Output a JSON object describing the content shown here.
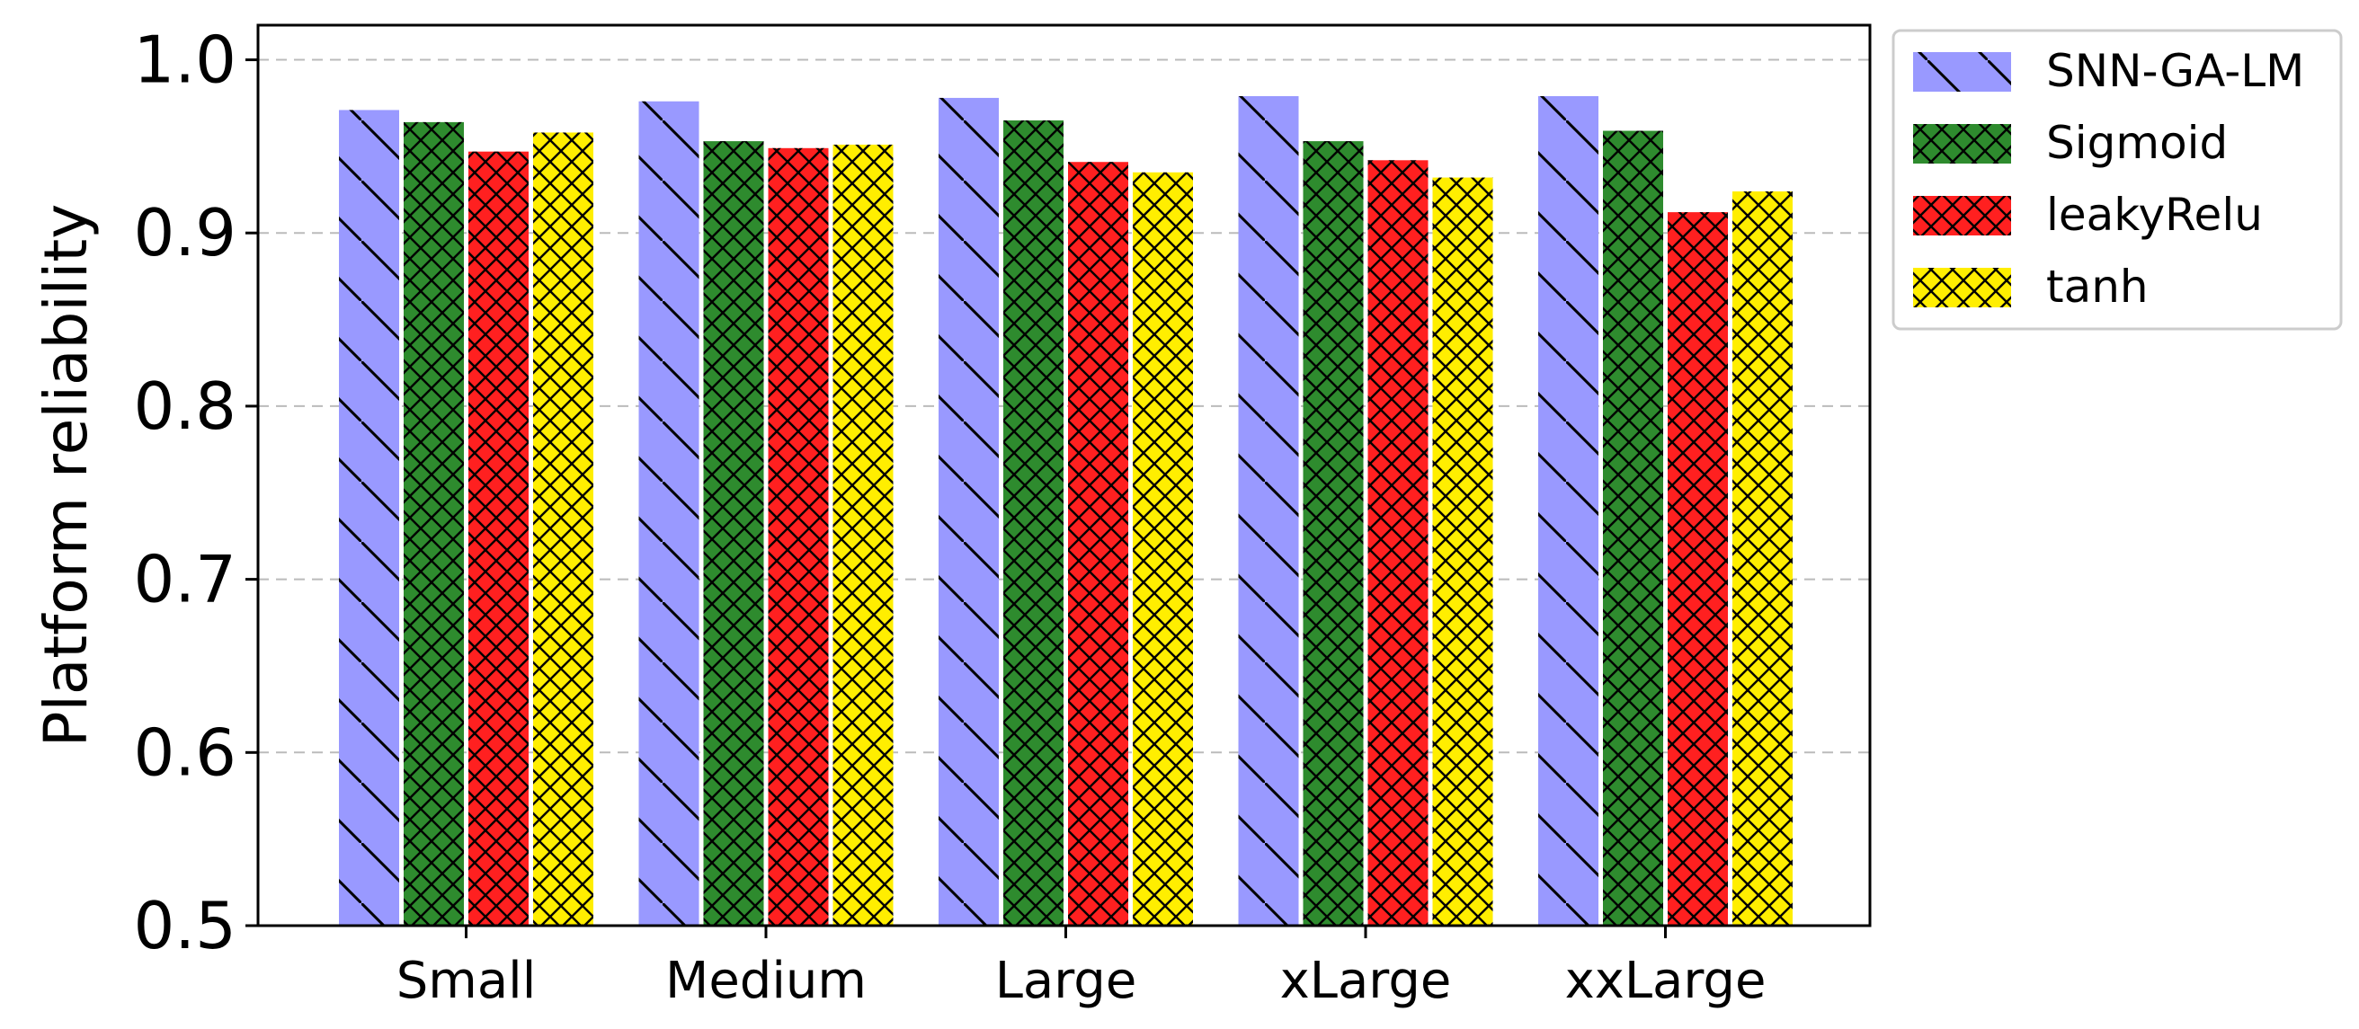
{
  "chart_data": {
    "type": "bar",
    "title": "",
    "xlabel": "",
    "ylabel": "Platform reliability",
    "ylim": [
      0.5,
      1.02
    ],
    "yticks": [
      "0.5",
      "0.6",
      "0.7",
      "0.8",
      "0.9",
      "1.0"
    ],
    "grid": "y-dashed",
    "legend_position": "outside-top-right",
    "categories": [
      "Small",
      "Medium",
      "Large",
      "xLarge",
      "xxLarge"
    ],
    "series": [
      {
        "name": "SNN-GA-LM",
        "color": "#9999ff",
        "hatch": "diagonal-backslash",
        "values": [
          0.971,
          0.976,
          0.978,
          0.979,
          0.979
        ]
      },
      {
        "name": "Sigmoid",
        "color": "#2e8b2e",
        "hatch": "crosshatch",
        "values": [
          0.964,
          0.953,
          0.965,
          0.953,
          0.959
        ]
      },
      {
        "name": "leakyRelu",
        "color": "#ff2020",
        "hatch": "crosshatch",
        "values": [
          0.947,
          0.949,
          0.941,
          0.942,
          0.912
        ]
      },
      {
        "name": "tanh",
        "color": "#ffee00",
        "hatch": "crosshatch",
        "values": [
          0.958,
          0.951,
          0.935,
          0.932,
          0.924
        ]
      }
    ]
  }
}
